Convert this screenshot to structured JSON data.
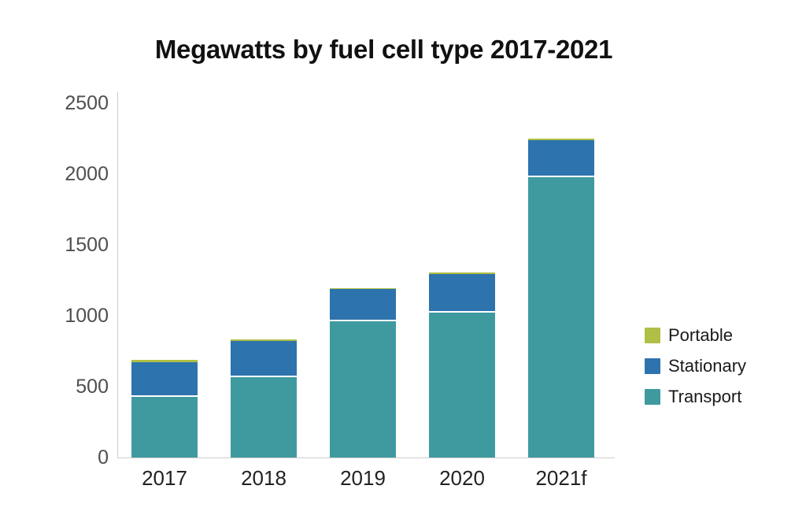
{
  "title": "Megawatts by fuel cell type 2017-2021",
  "chart_data": {
    "type": "bar",
    "variant": "stacked-column",
    "title": "Megawatts by fuel cell type 2017-2021",
    "unit": "megawatts",
    "categories": [
      "2017",
      "2018",
      "2019",
      "2020",
      "2021f"
    ],
    "series": [
      {
        "name": "Portable",
        "color": "#b0bf45",
        "values": [
          15,
          10,
          5,
          10,
          12
        ]
      },
      {
        "name": "Stationary",
        "color": "#2d73ad",
        "values": [
          235,
          245,
          215,
          260,
          250
        ]
      },
      {
        "name": "Transport",
        "color": "#3f9aa0",
        "values": [
          440,
          580,
          975,
          1035,
          1990
        ]
      }
    ],
    "stack_totals_mw": [
      690,
      835,
      1195,
      1305,
      2252
    ],
    "ylim": [
      0,
      2500
    ],
    "yticks": [
      "0",
      "500",
      "1000",
      "1500",
      "2000",
      "2500"
    ],
    "xlabel": "",
    "ylabel": "",
    "grid": false,
    "legend_position": "right",
    "legend_order": [
      "Portable",
      "Stationary",
      "Transport"
    ]
  },
  "colors": {
    "portable": "#b0bf45",
    "stationary": "#2d73ad",
    "transport": "#3f9aa0",
    "axis_line": "#cfcfcf",
    "y_tick_text": "#4f4f4f",
    "x_tick_text": "#222222",
    "title_text": "#111111",
    "background": "#ffffff",
    "segment_separator": "#ffffff"
  }
}
